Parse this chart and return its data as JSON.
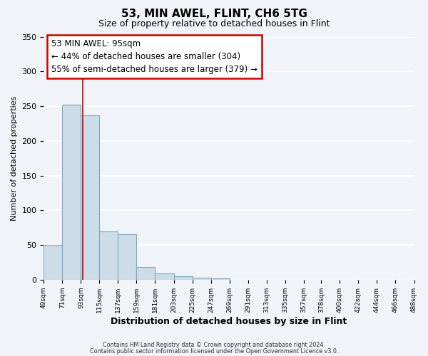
{
  "title": "53, MIN AWEL, FLINT, CH6 5TG",
  "subtitle": "Size of property relative to detached houses in Flint",
  "xlabel": "Distribution of detached houses by size in Flint",
  "ylabel": "Number of detached properties",
  "bar_color": "#ccdce8",
  "bar_edge_color": "#7aaabf",
  "background_color": "#f0f4f8",
  "plot_bg_color": "#f0f4f8",
  "grid_color": "#ffffff",
  "red_line_x": 95,
  "annotation_title": "53 MIN AWEL: 95sqm",
  "annotation_line1": "← 44% of detached houses are smaller (304)",
  "annotation_line2": "55% of semi-detached houses are larger (379) →",
  "annotation_box_color": "#ffffff",
  "annotation_box_edge": "#cc0000",
  "footer1": "Contains HM Land Registry data © Crown copyright and database right 2024.",
  "footer2": "Contains public sector information licensed under the Open Government Licence v3.0.",
  "bin_edges": [
    49,
    71,
    93,
    115,
    137,
    159,
    181,
    203,
    225,
    247,
    269,
    291,
    313,
    335,
    357,
    378,
    400,
    422,
    444,
    466,
    488
  ],
  "bar_heights": [
    50,
    252,
    237,
    70,
    65,
    18,
    9,
    5,
    3,
    2,
    0,
    0,
    0,
    0,
    0,
    0,
    0,
    0,
    0,
    0
  ],
  "ylim": [
    0,
    350
  ],
  "yticks": [
    0,
    50,
    100,
    150,
    200,
    250,
    300,
    350
  ]
}
